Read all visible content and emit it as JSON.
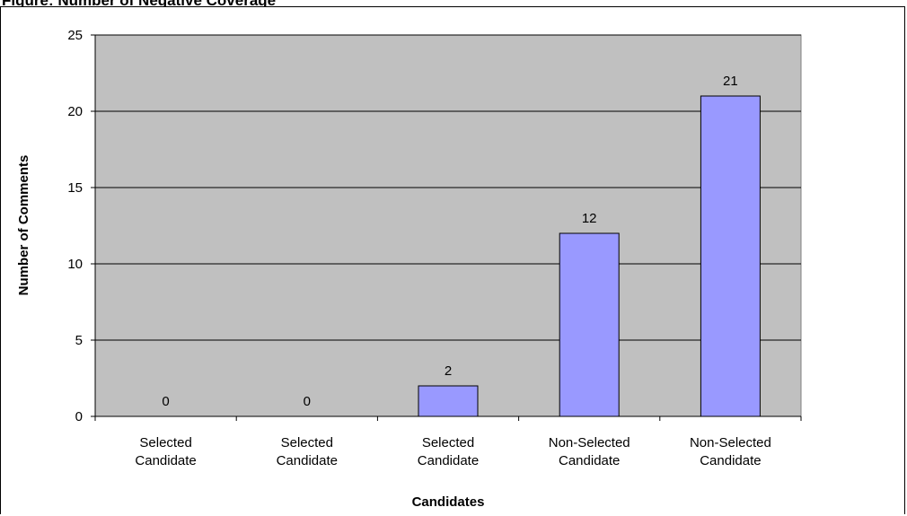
{
  "figure": {
    "partial_title": "Figure: Number of Negative Coverage"
  },
  "chart_data": {
    "type": "bar",
    "title": "",
    "xlabel": "Candidates",
    "ylabel": "Number of Comments",
    "categories": [
      [
        "Selected",
        "Candidate"
      ],
      [
        "Selected",
        "Candidate"
      ],
      [
        "Selected",
        "Candidate"
      ],
      [
        "Non-Selected",
        "Candidate"
      ],
      [
        "Non-Selected",
        "Candidate"
      ]
    ],
    "values": [
      0,
      0,
      2,
      12,
      21
    ],
    "data_labels": [
      "0",
      "0",
      "2",
      "12",
      "21"
    ],
    "ylim": [
      0,
      25
    ],
    "yticks": [
      0,
      5,
      10,
      15,
      20,
      25
    ],
    "grid": true,
    "legend": "none",
    "colors": {
      "plot_background": "#c0c0c0",
      "bar_fill": "#9999ff",
      "bar_stroke": "#000000",
      "gridline": "#000000"
    }
  }
}
